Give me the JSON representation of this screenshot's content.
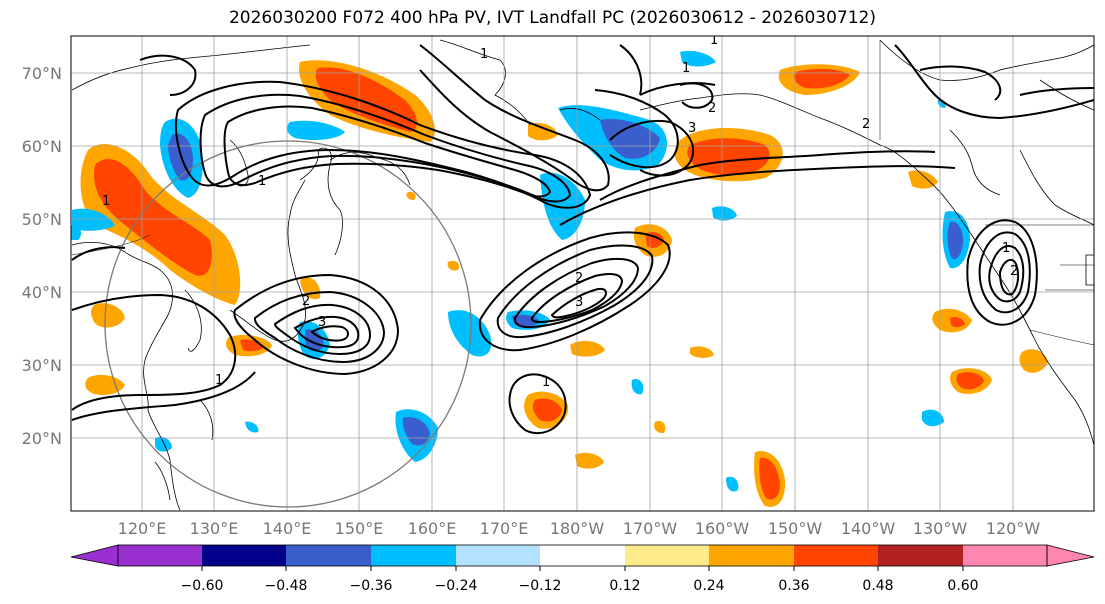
{
  "title": "2026030200 F072 400 hPa PV, IVT Landfall PC (2026030612 - 2026030712)",
  "map": {
    "lat_labels": [
      "70°N",
      "60°N",
      "50°N",
      "40°N",
      "30°N",
      "20°N"
    ],
    "lon_labels": [
      "120°E",
      "130°E",
      "140°E",
      "150°E",
      "160°E",
      "170°E",
      "180°W",
      "170°W",
      "160°W",
      "150°W",
      "140°W",
      "130°W",
      "120°W"
    ],
    "contour_labels": [
      "1",
      "1",
      "1",
      "2",
      "3",
      "3",
      "2",
      "1",
      "1",
      "1",
      "2",
      "3",
      "2",
      "1",
      "2",
      "1"
    ]
  },
  "colorbar": {
    "ticks": [
      "−0.60",
      "−0.48",
      "−0.36",
      "−0.24",
      "−0.12",
      "0.12",
      "0.24",
      "0.36",
      "0.48",
      "0.60"
    ],
    "colors": [
      "#9b30d0",
      "#00008b",
      "#3a5fcd",
      "#00bfff",
      "#b2e2ff",
      "#ffffff",
      "#ffeb8a",
      "#ffa500",
      "#ff4500",
      "#b22222",
      "#ff86b0"
    ]
  }
}
